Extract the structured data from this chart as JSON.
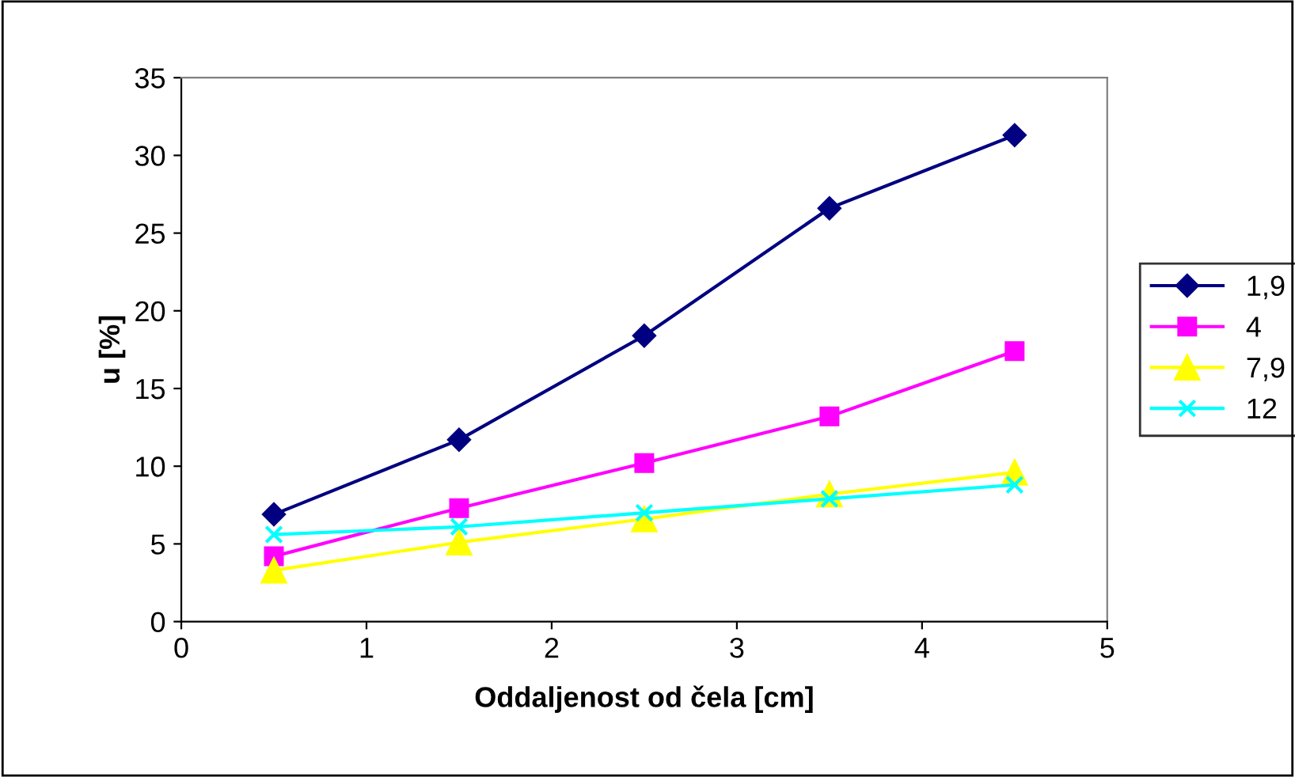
{
  "chart_data": {
    "type": "line",
    "xlabel": "Oddaljenost od čela [cm]",
    "ylabel": "u [%]",
    "x": [
      0.5,
      1.5,
      2.5,
      3.5,
      4.5
    ],
    "xlim": [
      0,
      5
    ],
    "xticks": [
      0,
      1,
      2,
      3,
      4,
      5
    ],
    "ylim": [
      0,
      35
    ],
    "yticks": [
      0,
      5,
      10,
      15,
      20,
      25,
      30,
      35
    ],
    "grid": false,
    "legend": "right",
    "line_style": "solid",
    "series": [
      {
        "name": "1,9",
        "color": "#000080",
        "marker": "diamond",
        "values": [
          6.9,
          11.7,
          18.4,
          26.6,
          31.3
        ]
      },
      {
        "name": "4",
        "color": "#ff00ff",
        "marker": "square",
        "values": [
          4.2,
          7.3,
          10.2,
          13.2,
          17.4
        ]
      },
      {
        "name": "7,9",
        "color": "#ffff00",
        "marker": "triangle",
        "values": [
          3.3,
          5.1,
          6.6,
          8.2,
          9.6
        ]
      },
      {
        "name": "12",
        "color": "#00ffff",
        "marker": "cross",
        "values": [
          5.6,
          6.1,
          7.0,
          7.9,
          8.8
        ]
      }
    ]
  }
}
